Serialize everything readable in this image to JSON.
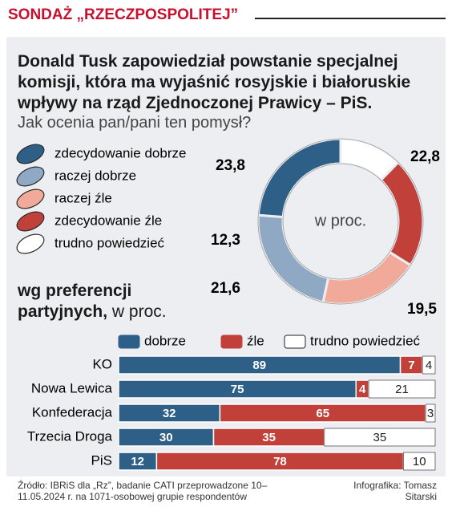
{
  "header": "SONDAŻ „RZECZPOSPOLITEJ”",
  "chart_data": [
    {
      "type": "pie",
      "donut": true,
      "title": "Donald Tusk zapowiedział powstanie specjalnej komisji, która ma wyjaśnić rosyjskie i białoruskie wpływy na rząd Zjednoczonej Prawicy – PiS.",
      "subtitle": "Jak ocenia pan/pani ten pomysł?",
      "center_label": "w proc.",
      "categories": [
        "zdecydowanie dobrze",
        "raczej dobrze",
        "raczej źle",
        "zdecydowanie źle",
        "trudno powiedzieć"
      ],
      "values": [
        23.8,
        22.8,
        19.5,
        21.6,
        12.3
      ],
      "value_labels": [
        "23,8",
        "22,8",
        "19,5",
        "21,6",
        "12,3"
      ],
      "colors": [
        "#2d5f87",
        "#8fa9c4",
        "#f1aa9a",
        "#c1413a",
        "#ffffff"
      ]
    },
    {
      "type": "bar",
      "orientation": "horizontal",
      "stacked": true,
      "title": "wg preferencji partyjnych,",
      "subtitle": "w proc.",
      "categories": [
        "KO",
        "Nowa Lewica",
        "Konfederacja",
        "Trzecia Droga",
        "PiS"
      ],
      "xlim": [
        0,
        100
      ],
      "series": [
        {
          "name": "dobrze",
          "color": "#2d5f87",
          "values": [
            89,
            75,
            32,
            30,
            12
          ]
        },
        {
          "name": "źle",
          "color": "#c1413a",
          "values": [
            7,
            4,
            65,
            35,
            78
          ]
        },
        {
          "name": "trudno powiedzieć",
          "color": "#ffffff",
          "values": [
            4,
            21,
            3,
            35,
            10
          ]
        }
      ]
    }
  ],
  "footer": {
    "source": "Źródło: IBRiS dla „Rz”, badanie CATI przeprowadzone 10–11.05.2024 r. na 1071-osobowej grupie respondentów",
    "credit": "Infografika: Tomasz Sitarski"
  }
}
